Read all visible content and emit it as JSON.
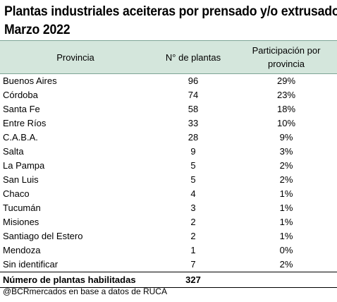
{
  "title": "Plantas industriales aceiteras por prensado y/o extrusado. Marzo 2022",
  "title_line1": "Plantas industriales aceiteras por prensado y/o extrusado.",
  "title_line2": "Marzo 2022",
  "header_color": "#d4e6dc",
  "chart_data": {
    "type": "table",
    "columns": [
      "Provincia",
      "N° de plantas",
      "Participación por provincia"
    ],
    "rows": [
      [
        "Buenos Aires",
        "96",
        "29%"
      ],
      [
        "Córdoba",
        "74",
        "23%"
      ],
      [
        "Santa Fe",
        "58",
        "18%"
      ],
      [
        "Entre Ríos",
        "33",
        "10%"
      ],
      [
        "C.A.B.A.",
        "28",
        "9%"
      ],
      [
        "Salta",
        "9",
        "3%"
      ],
      [
        "La Pampa",
        "5",
        "2%"
      ],
      [
        "San Luis",
        "5",
        "2%"
      ],
      [
        "Chaco",
        "4",
        "1%"
      ],
      [
        "Tucumán",
        "3",
        "1%"
      ],
      [
        "Misiones",
        "2",
        "1%"
      ],
      [
        "Santiago del Estero",
        "2",
        "1%"
      ],
      [
        "Mendoza",
        "1",
        "0%"
      ],
      [
        "Sin identificar",
        "7",
        "2%"
      ]
    ],
    "total": {
      "label": "Número de plantas habilitadas",
      "value": "327"
    }
  },
  "source": "@BCRmercados en base a datos de RUCA"
}
